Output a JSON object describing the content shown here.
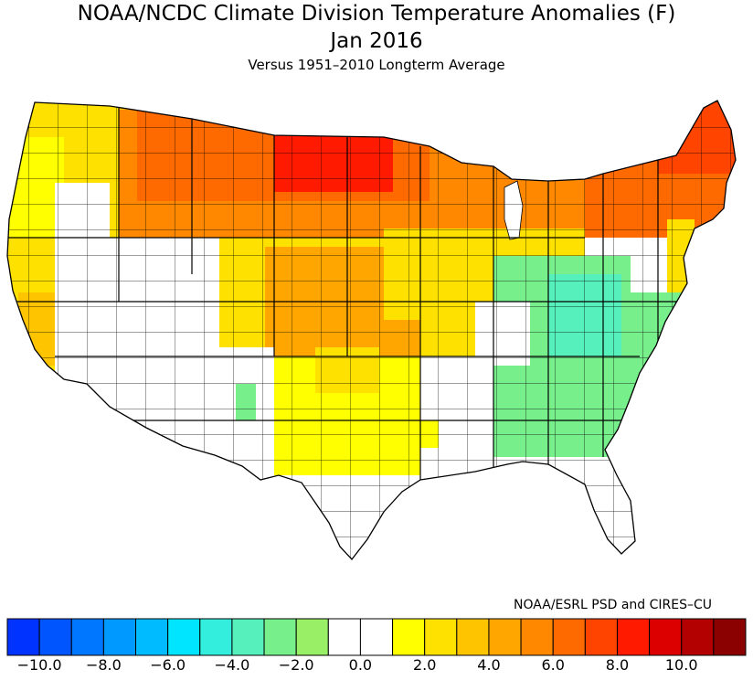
{
  "title": "NOAA/NCDC Climate Division Temperature Anomalies (F)",
  "subtitle": "Jan 2016",
  "subtitle2": "Versus 1951–2010 Longterm Average",
  "credit": "NOAA/ESRL PSD and CIRES–CU",
  "legend": {
    "colors": [
      "#0033ff",
      "#0055ff",
      "#0077ff",
      "#0099ff",
      "#00bbff",
      "#00e5ff",
      "#33eedd",
      "#55f0bb",
      "#77f08c",
      "#99f066",
      "#ffffff",
      "#ffffff",
      "#ffff00",
      "#ffe100",
      "#ffc400",
      "#ffa600",
      "#ff8800",
      "#ff6a00",
      "#ff4400",
      "#ff1a00",
      "#dd0000",
      "#b30000",
      "#8b0000"
    ],
    "ticks": [
      "−10.0",
      "−8.0",
      "−6.0",
      "−4.0",
      "−2.0",
      "0.0",
      "2.0",
      "4.0",
      "6.0",
      "8.0",
      "10.0"
    ]
  },
  "map_regions": [
    {
      "region": "northern-plains-core",
      "anomaly": 7.0,
      "color": "#ff1a00"
    },
    {
      "region": "north-central",
      "anomaly": 6.0,
      "color": "#ff4400"
    },
    {
      "region": "northeast",
      "anomaly": 6.0,
      "color": "#ff4400"
    },
    {
      "region": "northwest",
      "anomaly": 3.0,
      "color": "#ffc400"
    },
    {
      "region": "central-plains",
      "anomaly": 4.0,
      "color": "#ffa600"
    },
    {
      "region": "midwest",
      "anomaly": 2.0,
      "color": "#ffe100"
    },
    {
      "region": "southern-plains",
      "anomaly": 1.0,
      "color": "#ffff00"
    },
    {
      "region": "southeast-appalachians",
      "anomaly": -2.0,
      "color": "#77f08c"
    },
    {
      "region": "southwest",
      "anomaly": 0.0,
      "color": "#ffffff"
    }
  ]
}
